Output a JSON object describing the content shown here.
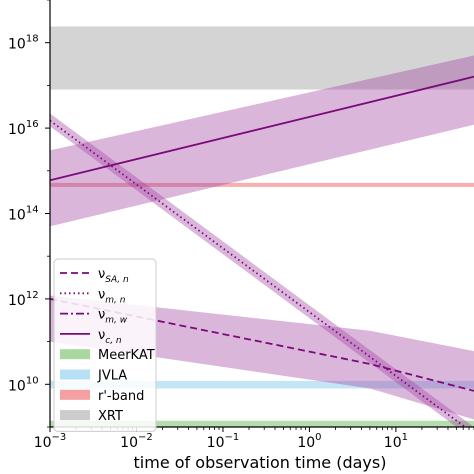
{
  "chart_data": {
    "type": "line",
    "xlabel": "time of observation time (days)",
    "ylabel": "",
    "xscale": "log",
    "yscale": "log",
    "xlim": [
      0.001,
      80
    ],
    "ylim": [
      1000000000.0,
      1e+19
    ],
    "grid": false,
    "legend_position": "lower-left",
    "x_ticks": [
      {
        "value": 0.001,
        "base": "10",
        "exp": "−3"
      },
      {
        "value": 0.01,
        "base": "10",
        "exp": "−2"
      },
      {
        "value": 0.1,
        "base": "10",
        "exp": "−1"
      },
      {
        "value": 1,
        "base": "10",
        "exp": "0"
      },
      {
        "value": 10,
        "base": "10",
        "exp": "1"
      }
    ],
    "y_ticks": [
      {
        "value": 10000000000.0,
        "base": "10",
        "exp": "10"
      },
      {
        "value": 1000000000000.0,
        "base": "10",
        "exp": "12"
      },
      {
        "value": 100000000000000.0,
        "base": "10",
        "exp": "14"
      },
      {
        "value": 1e+16,
        "base": "10",
        "exp": "16"
      },
      {
        "value": 1e+18,
        "base": "10",
        "exp": "18"
      }
    ],
    "bands": [
      {
        "name": "MeerKAT",
        "y_range": [
          1000000000.0,
          1400000000.0
        ],
        "color": "#a8d8a0"
      },
      {
        "name": "JVLA",
        "y_range": [
          8000000000.0,
          12000000000.0
        ],
        "color": "#b8e0f4"
      },
      {
        "name": "r'-band",
        "y_range": [
          420000000000000.0,
          520000000000000.0
        ],
        "color": "#f4a0a0"
      },
      {
        "name": "XRT",
        "y_range": [
          8e+16,
          2.4e+18
        ],
        "color": "#cccccc"
      }
    ],
    "series": [
      {
        "name": "ν",
        "sub": "SA, n",
        "style": "dashed",
        "color": "#7a0a7a",
        "x": [
          0.001,
          5,
          80
        ],
        "y": [
          1000000000000.0,
          30000000000.0,
          7000000000.0
        ],
        "band_lower": [
          100000000000.0,
          8000000000.0,
          1500000000.0
        ],
        "band_upper": [
          1200000000000.0,
          180000000000.0,
          60000000000.0
        ]
      },
      {
        "name": "ν",
        "sub": "m, n",
        "style": "dotted",
        "color": "#7a0a7a",
        "x": [
          0.001,
          80
        ],
        "y": [
          1.5e+16,
          700000000.0
        ],
        "band_lower": [
          1.1e+16,
          500000000.0
        ],
        "band_upper": [
          2.2e+16,
          1000000000.0
        ]
      },
      {
        "name": "ν",
        "sub": "m, w",
        "style": "dashdot",
        "color": "#7a0a7a",
        "x": [
          0.001,
          80
        ],
        "y": [
          900000000.0,
          900000000.0
        ]
      },
      {
        "name": "ν",
        "sub": "c, n",
        "style": "solid",
        "color": "#7a0a7a",
        "x": [
          0.001,
          80
        ],
        "y": [
          600000000000000.0,
          1.6e+17
        ],
        "band_lower": [
          50000000000000.0,
          1.2e+16
        ],
        "band_upper": [
          3000000000000000.0,
          5e+17
        ]
      }
    ]
  }
}
